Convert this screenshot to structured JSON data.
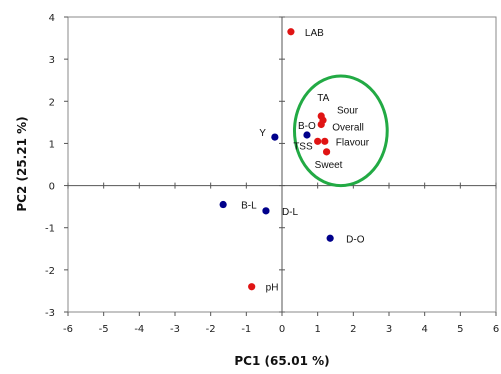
{
  "chart_data": {
    "type": "scatter",
    "xlabel": "PC1 (65.01 %)",
    "ylabel": "PC2 (25.21 %)",
    "xlim": [
      -6,
      6
    ],
    "ylim": [
      -3,
      4
    ],
    "xticks": [
      -6,
      -5,
      -4,
      -3,
      -2,
      -1,
      0,
      1,
      2,
      3,
      4,
      5,
      6
    ],
    "yticks": [
      -3,
      -2,
      -1,
      0,
      1,
      2,
      3,
      4
    ],
    "grid": false,
    "legend": "none",
    "series": [
      {
        "color": "#00008b",
        "points": [
          {
            "label": "Y",
            "x": -0.2,
            "y": 1.15
          },
          {
            "label": "B-O",
            "x": 0.7,
            "y": 1.2
          },
          {
            "label": "B-L",
            "x": -1.65,
            "y": -0.45
          },
          {
            "label": "D-L",
            "x": -0.45,
            "y": -0.6
          },
          {
            "label": "D-O",
            "x": 1.35,
            "y": -1.25
          }
        ]
      },
      {
        "color": "#e01414",
        "points": [
          {
            "label": "LAB",
            "x": 0.25,
            "y": 3.65
          },
          {
            "label": "TA",
            "x": 1.1,
            "y": 1.65
          },
          {
            "label": "Sour",
            "x": 1.15,
            "y": 1.55
          },
          {
            "label": "Overall",
            "x": 1.1,
            "y": 1.45
          },
          {
            "label": "Flavour",
            "x": 1.2,
            "y": 1.05
          },
          {
            "label": "TSS",
            "x": 1.0,
            "y": 1.05
          },
          {
            "label": "Sweet",
            "x": 1.25,
            "y": 0.8
          },
          {
            "label": "pH",
            "x": -0.85,
            "y": -2.4
          }
        ]
      }
    ],
    "annotations": [
      {
        "type": "circle",
        "color": "#22aa44",
        "cx": 1.65,
        "cy": 1.3,
        "r": 1.3
      }
    ]
  }
}
